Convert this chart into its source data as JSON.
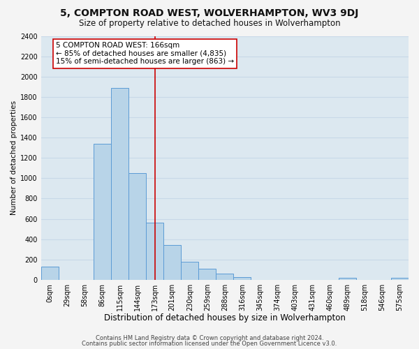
{
  "title": "5, COMPTON ROAD WEST, WOLVERHAMPTON, WV3 9DJ",
  "subtitle": "Size of property relative to detached houses in Wolverhampton",
  "bar_labels": [
    "0sqm",
    "29sqm",
    "58sqm",
    "86sqm",
    "115sqm",
    "144sqm",
    "173sqm",
    "201sqm",
    "230sqm",
    "259sqm",
    "288sqm",
    "316sqm",
    "345sqm",
    "374sqm",
    "403sqm",
    "431sqm",
    "460sqm",
    "489sqm",
    "518sqm",
    "546sqm",
    "575sqm"
  ],
  "bar_heights": [
    130,
    0,
    0,
    1340,
    1890,
    1050,
    560,
    340,
    175,
    110,
    60,
    30,
    0,
    0,
    0,
    0,
    0,
    20,
    0,
    0,
    20
  ],
  "bar_color": "#b8d4e8",
  "bar_edge_color": "#5b9bd5",
  "vline_x": 6.0,
  "vline_color": "#cc0000",
  "annotation_text": "5 COMPTON ROAD WEST: 166sqm\n← 85% of detached houses are smaller (4,835)\n15% of semi-detached houses are larger (863) →",
  "annotation_box_color": "#ffffff",
  "annotation_box_edge": "#cc0000",
  "xlabel": "Distribution of detached houses by size in Wolverhampton",
  "ylabel": "Number of detached properties",
  "ylim": [
    0,
    2400
  ],
  "yticks": [
    0,
    200,
    400,
    600,
    800,
    1000,
    1200,
    1400,
    1600,
    1800,
    2000,
    2200,
    2400
  ],
  "footer1": "Contains HM Land Registry data © Crown copyright and database right 2024.",
  "footer2": "Contains public sector information licensed under the Open Government Licence v3.0.",
  "grid_color": "#c8d8e8",
  "bg_color": "#dce8f0",
  "title_fontsize": 10,
  "subtitle_fontsize": 8.5,
  "xlabel_fontsize": 8.5,
  "ylabel_fontsize": 7.5,
  "tick_fontsize": 7,
  "footer_fontsize": 6,
  "annotation_fontsize": 7.5
}
